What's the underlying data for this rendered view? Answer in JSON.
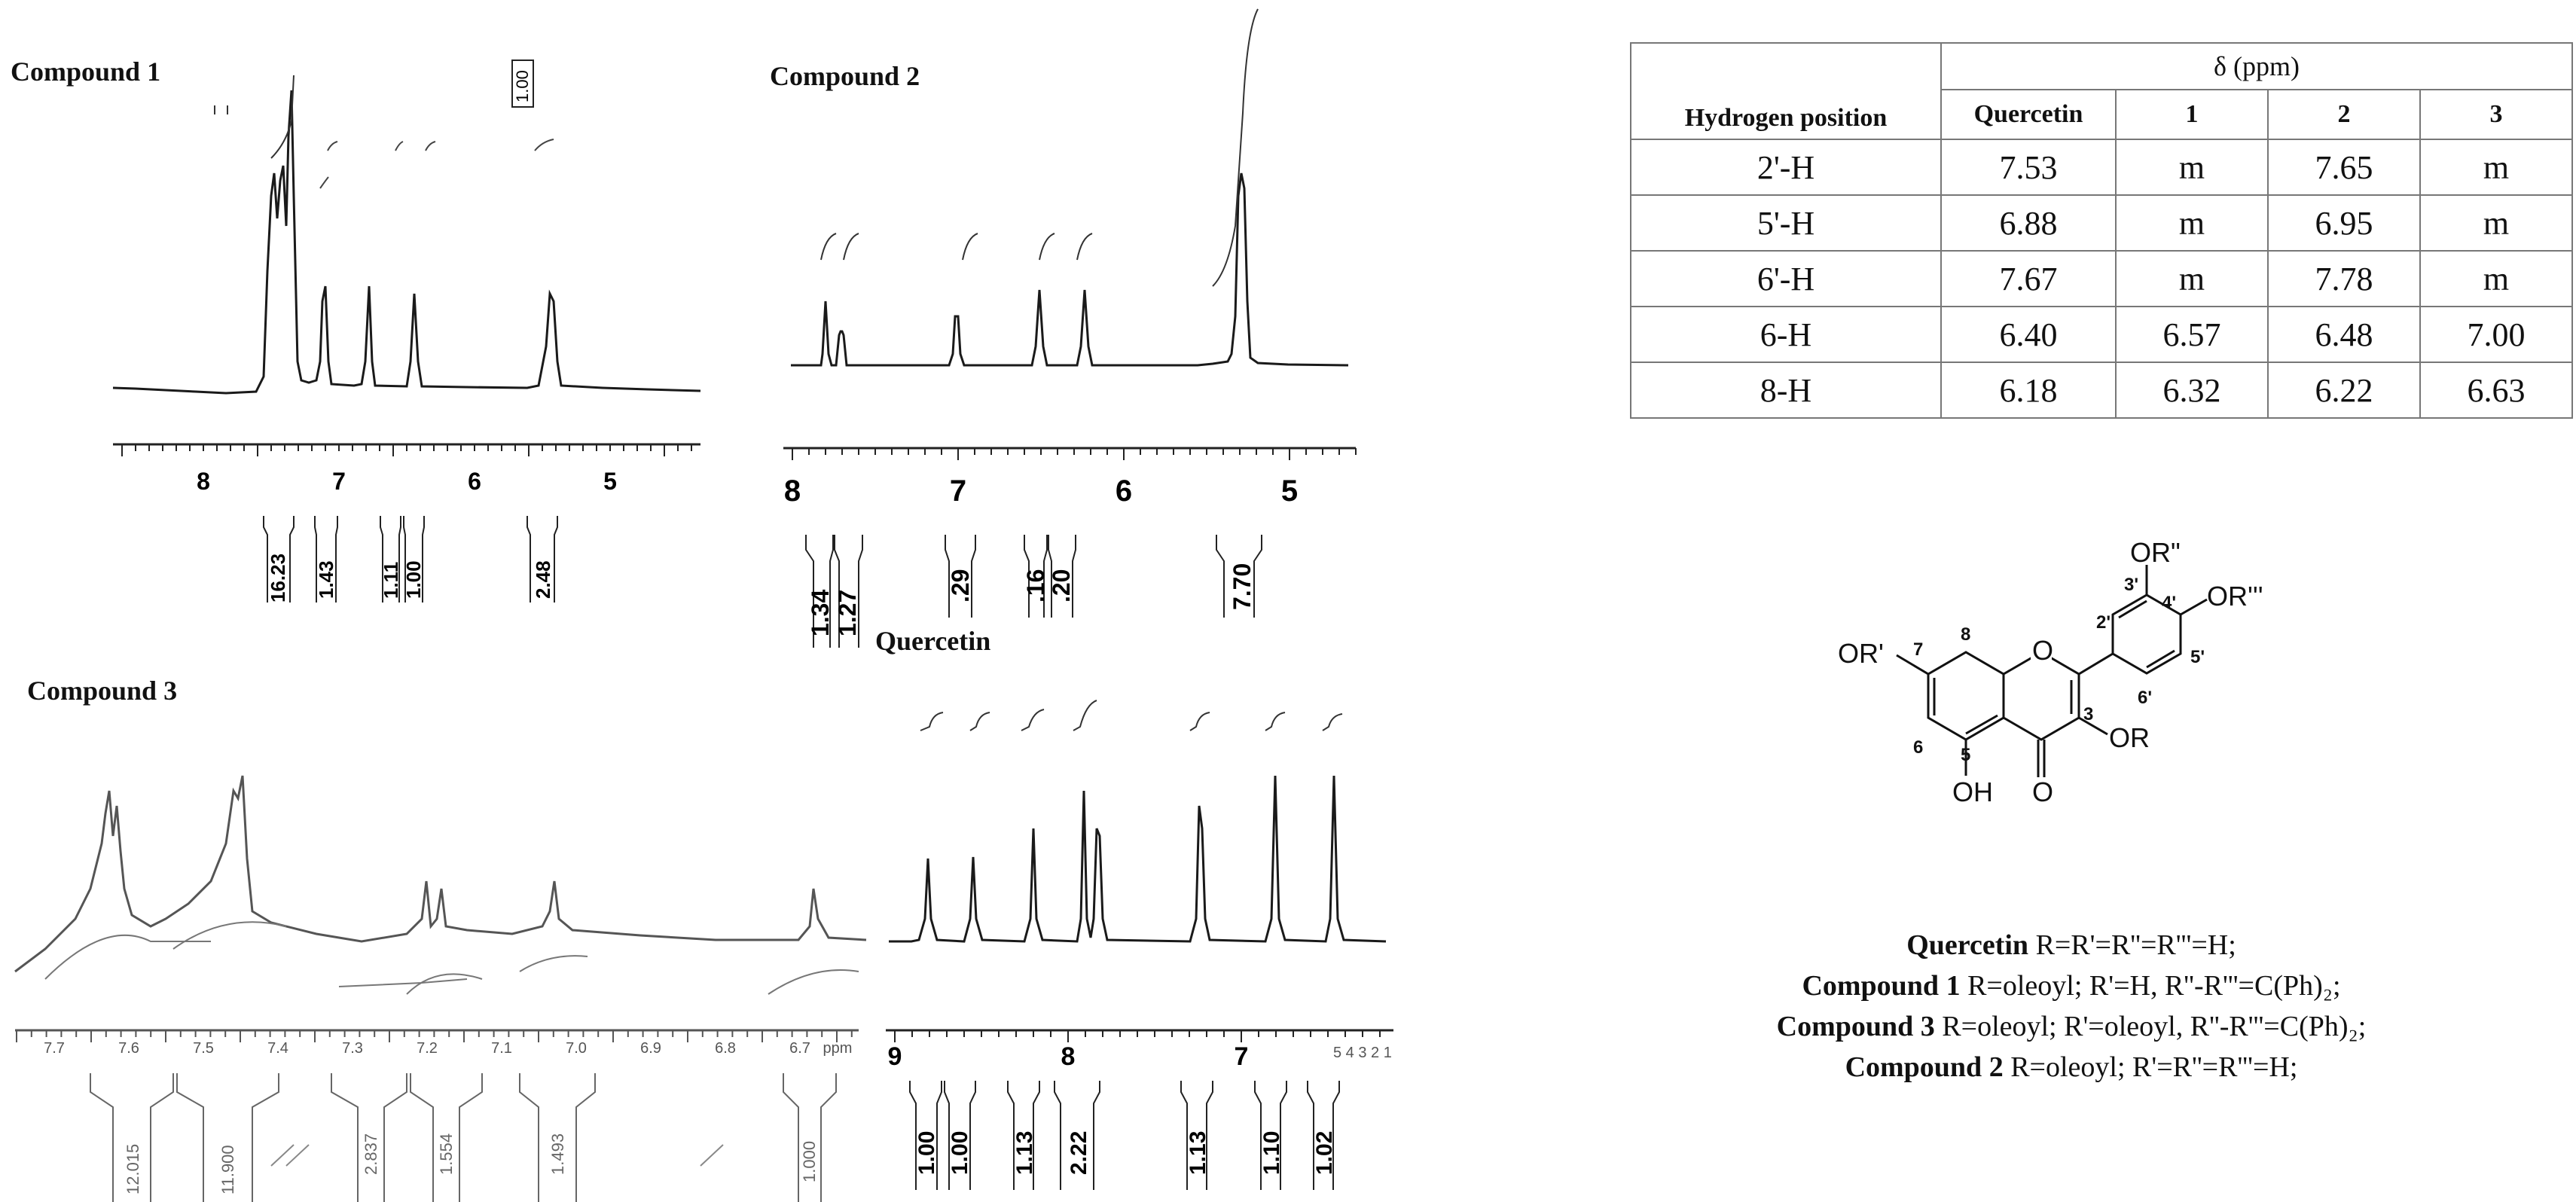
{
  "panels": {
    "compound1": {
      "title": "Compound 1",
      "top_integral": "1.00",
      "chart_data": {
        "type": "line",
        "title": "Compound 1",
        "xlim": [
          8.9,
          4.5
        ],
        "x_ticks": [
          "8",
          "7",
          "6",
          "5"
        ],
        "peaks": [
          7.62,
          7.56,
          7.5,
          7.44,
          7.16,
          6.55,
          6.28,
          5.32
        ],
        "integrals": [
          {
            "label": "16.23"
          },
          {
            "label": "1.43"
          },
          {
            "label": "1.11"
          },
          {
            "label": "1.00"
          },
          {
            "label": "2.48"
          }
        ]
      }
    },
    "compound2": {
      "title": "Compound  2",
      "chart_data": {
        "type": "line",
        "title": "Compound  2",
        "xlim": [
          8.0,
          4.65
        ],
        "x_ticks": [
          "8",
          "7",
          "6",
          "5"
        ],
        "peaks": [
          7.78,
          7.66,
          7.62,
          6.95,
          6.48,
          6.22,
          5.33
        ],
        "integrals": [
          {
            "label": "1.34"
          },
          {
            "label": "1.27"
          },
          {
            "label": ".29"
          },
          {
            "label": ".16"
          },
          {
            "label": ".20"
          },
          {
            "label": "7.70"
          }
        ]
      }
    },
    "compound3": {
      "title": "Compound  3",
      "chart_data": {
        "type": "line",
        "title": "Compound  3",
        "xlim": [
          7.75,
          6.63
        ],
        "x_ticks": [
          "7.7",
          "7.6",
          "7.5",
          "7.4",
          "7.3",
          "7.2",
          "7.1",
          "7.0",
          "6.9",
          "6.8",
          "6.7"
        ],
        "x_unit": "ppm",
        "peaks": [
          7.63,
          7.62,
          7.61,
          7.6,
          7.48,
          7.47,
          7.46,
          7.45,
          7.2,
          7.17,
          7.0,
          6.68
        ],
        "integrals": [
          {
            "label": "12.015"
          },
          {
            "label": "11.900"
          },
          {
            "label": "2.837"
          },
          {
            "label": "1.554"
          },
          {
            "label": "1.493"
          },
          {
            "label": "1.000"
          }
        ]
      }
    },
    "quercetin": {
      "title": "Quercetin",
      "chart_data": {
        "type": "line",
        "title": "Quercetin",
        "xlim": [
          9.1,
          6.2
        ],
        "x_ticks": [
          "9",
          "8",
          "7"
        ],
        "tick_extra": "5 4 3 2 1",
        "peaks": [
          8.68,
          8.45,
          8.12,
          7.82,
          7.72,
          7.68,
          6.98,
          6.94,
          6.58,
          6.28
        ],
        "integrals": [
          {
            "label": "1.00"
          },
          {
            "label": "1.00"
          },
          {
            "label": "1.13"
          },
          {
            "label": "2.22"
          },
          {
            "label": "1.13"
          },
          {
            "label": "1.10"
          },
          {
            "label": "1.02"
          }
        ]
      }
    }
  },
  "table": {
    "chart_data": {
      "type": "table",
      "delta_header": "δ (ppm)",
      "columns": [
        "Hydrogen position",
        "Quercetin",
        "1",
        "2",
        "3"
      ],
      "rows": [
        [
          "2'-H",
          "7.53",
          "m",
          "7.65",
          "m"
        ],
        [
          "5'-H",
          "6.88",
          "m",
          "6.95",
          "m"
        ],
        [
          "6'-H",
          "7.67",
          "m",
          "7.78",
          "m"
        ],
        [
          "6-H",
          "6.40",
          "6.57",
          "6.48",
          "7.00"
        ],
        [
          "8-H",
          "6.18",
          "6.32",
          "6.22",
          "6.63"
        ]
      ]
    }
  },
  "structure": {
    "labels": {
      "or_dprime": "OR\"",
      "or_tprime": "OR'''",
      "or_prime": "OR'",
      "or": "OR",
      "oh": "OH",
      "o_ring": "O",
      "o_carbonyl": "O",
      "n7": "7",
      "n8": "8",
      "n6": "6",
      "n5": "5",
      "n3": "3",
      "n2p": "2'",
      "n3p": "3'",
      "n4p": "4'",
      "n5p": "5'",
      "n6p": "6'"
    }
  },
  "legend": [
    {
      "name": "Quercetin",
      "text": " R=R'=R''=R'''=H;"
    },
    {
      "name": "Compound 1",
      "text": " R=oleoyl; R'=H, R''-R'''=C(Ph)₂;"
    },
    {
      "name": "Compound 3",
      "text": " R=oleoyl; R'=oleoyl, R''-R'''=C(Ph)₂;"
    },
    {
      "name": "Compound 2",
      "text": " R=oleoyl; R'=R''=R'''=H;"
    }
  ]
}
